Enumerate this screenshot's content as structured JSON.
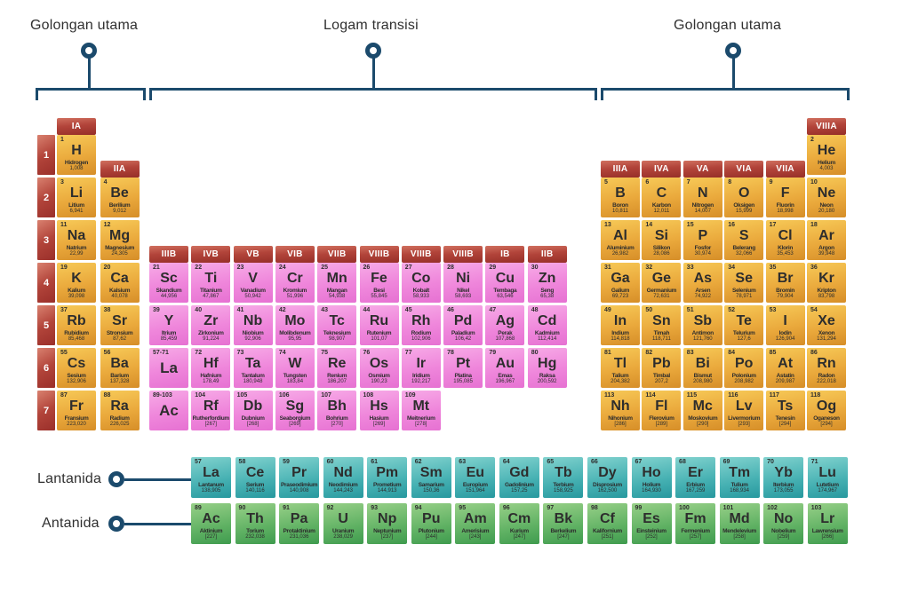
{
  "annotations": {
    "left_label": "Golongan utama",
    "middle_label": "Logam transisi",
    "right_label": "Golongan utama",
    "lanthanide_label": "Lantanida",
    "actinide_label": "Antanida"
  },
  "colors": {
    "main_group": "#eaa93c",
    "transition_metal": "#ef86db",
    "lanthanide": "#45b0b2",
    "actinide": "#5fb163",
    "header_red": "#b2443a",
    "annotation_blue": "#1b4a6c"
  },
  "periods": [
    "1",
    "2",
    "3",
    "4",
    "5",
    "6",
    "7"
  ],
  "group_headers": [
    {
      "label": "IA",
      "group": 1,
      "level": "high"
    },
    {
      "label": "IIA",
      "group": 2,
      "level": "low"
    },
    {
      "label": "IIIB",
      "group": 3,
      "level": "mid"
    },
    {
      "label": "IVB",
      "group": 4,
      "level": "mid"
    },
    {
      "label": "VB",
      "group": 5,
      "level": "mid"
    },
    {
      "label": "VIB",
      "group": 6,
      "level": "mid"
    },
    {
      "label": "VIIB",
      "group": 7,
      "level": "mid"
    },
    {
      "label": "VIIIB",
      "group": 8,
      "level": "mid"
    },
    {
      "label": "VIIIB",
      "group": 9,
      "level": "mid"
    },
    {
      "label": "VIIIB",
      "group": 10,
      "level": "mid"
    },
    {
      "label": "IB",
      "group": 11,
      "level": "mid"
    },
    {
      "label": "IIB",
      "group": 12,
      "level": "mid"
    },
    {
      "label": "IIIA",
      "group": 13,
      "level": "low"
    },
    {
      "label": "IVA",
      "group": 14,
      "level": "low"
    },
    {
      "label": "VA",
      "group": 15,
      "level": "low"
    },
    {
      "label": "VIA",
      "group": 16,
      "level": "low"
    },
    {
      "label": "VIIA",
      "group": 17,
      "level": "low"
    },
    {
      "label": "VIIIA",
      "group": 18,
      "level": "high"
    }
  ],
  "elements": [
    {
      "n": "1",
      "s": "H",
      "nm": "Hidrogen",
      "m": "1,008",
      "p": 1,
      "g": 1,
      "c": "mg"
    },
    {
      "n": "2",
      "s": "He",
      "nm": "Helium",
      "m": "4,003",
      "p": 1,
      "g": 18,
      "c": "mg"
    },
    {
      "n": "3",
      "s": "Li",
      "nm": "Litium",
      "m": "6,941",
      "p": 2,
      "g": 1,
      "c": "mg"
    },
    {
      "n": "4",
      "s": "Be",
      "nm": "Berilium",
      "m": "9,012",
      "p": 2,
      "g": 2,
      "c": "mg"
    },
    {
      "n": "5",
      "s": "B",
      "nm": "Boron",
      "m": "10,811",
      "p": 2,
      "g": 13,
      "c": "mg"
    },
    {
      "n": "6",
      "s": "C",
      "nm": "Karbon",
      "m": "12,011",
      "p": 2,
      "g": 14,
      "c": "mg"
    },
    {
      "n": "7",
      "s": "N",
      "nm": "Nitrogen",
      "m": "14,007",
      "p": 2,
      "g": 15,
      "c": "mg"
    },
    {
      "n": "8",
      "s": "O",
      "nm": "Oksigen",
      "m": "15,999",
      "p": 2,
      "g": 16,
      "c": "mg"
    },
    {
      "n": "9",
      "s": "F",
      "nm": "Fluorin",
      "m": "18,998",
      "p": 2,
      "g": 17,
      "c": "mg"
    },
    {
      "n": "10",
      "s": "Ne",
      "nm": "Neon",
      "m": "20,180",
      "p": 2,
      "g": 18,
      "c": "mg"
    },
    {
      "n": "11",
      "s": "Na",
      "nm": "Natrium",
      "m": "22,99",
      "p": 3,
      "g": 1,
      "c": "mg"
    },
    {
      "n": "12",
      "s": "Mg",
      "nm": "Magnesium",
      "m": "24,305",
      "p": 3,
      "g": 2,
      "c": "mg"
    },
    {
      "n": "13",
      "s": "Al",
      "nm": "Aluminium",
      "m": "26,982",
      "p": 3,
      "g": 13,
      "c": "mg"
    },
    {
      "n": "14",
      "s": "Si",
      "nm": "Silikon",
      "m": "28,086",
      "p": 3,
      "g": 14,
      "c": "mg"
    },
    {
      "n": "15",
      "s": "P",
      "nm": "Fosfor",
      "m": "30,974",
      "p": 3,
      "g": 15,
      "c": "mg"
    },
    {
      "n": "16",
      "s": "S",
      "nm": "Belerang",
      "m": "32,066",
      "p": 3,
      "g": 16,
      "c": "mg"
    },
    {
      "n": "17",
      "s": "Cl",
      "nm": "Klorin",
      "m": "35,453",
      "p": 3,
      "g": 17,
      "c": "mg"
    },
    {
      "n": "18",
      "s": "Ar",
      "nm": "Argon",
      "m": "39,948",
      "p": 3,
      "g": 18,
      "c": "mg"
    },
    {
      "n": "19",
      "s": "K",
      "nm": "Kalium",
      "m": "39,098",
      "p": 4,
      "g": 1,
      "c": "mg"
    },
    {
      "n": "20",
      "s": "Ca",
      "nm": "Kalsium",
      "m": "40,078",
      "p": 4,
      "g": 2,
      "c": "mg"
    },
    {
      "n": "21",
      "s": "Sc",
      "nm": "Skandium",
      "m": "44,956",
      "p": 4,
      "g": 3,
      "c": "tm"
    },
    {
      "n": "22",
      "s": "Ti",
      "nm": "Titanium",
      "m": "47,867",
      "p": 4,
      "g": 4,
      "c": "tm"
    },
    {
      "n": "23",
      "s": "V",
      "nm": "Vanadium",
      "m": "50,942",
      "p": 4,
      "g": 5,
      "c": "tm"
    },
    {
      "n": "24",
      "s": "Cr",
      "nm": "Kromium",
      "m": "51,996",
      "p": 4,
      "g": 6,
      "c": "tm"
    },
    {
      "n": "25",
      "s": "Mn",
      "nm": "Mangan",
      "m": "54,938",
      "p": 4,
      "g": 7,
      "c": "tm"
    },
    {
      "n": "26",
      "s": "Fe",
      "nm": "Besi",
      "m": "55,845",
      "p": 4,
      "g": 8,
      "c": "tm"
    },
    {
      "n": "27",
      "s": "Co",
      "nm": "Kobalt",
      "m": "58,933",
      "p": 4,
      "g": 9,
      "c": "tm"
    },
    {
      "n": "28",
      "s": "Ni",
      "nm": "Nikel",
      "m": "58,693",
      "p": 4,
      "g": 10,
      "c": "tm"
    },
    {
      "n": "29",
      "s": "Cu",
      "nm": "Tembaga",
      "m": "63,546",
      "p": 4,
      "g": 11,
      "c": "tm"
    },
    {
      "n": "30",
      "s": "Zn",
      "nm": "Seng",
      "m": "65,38",
      "p": 4,
      "g": 12,
      "c": "tm"
    },
    {
      "n": "31",
      "s": "Ga",
      "nm": "Galium",
      "m": "69,723",
      "p": 4,
      "g": 13,
      "c": "mg"
    },
    {
      "n": "32",
      "s": "Ge",
      "nm": "Germanium",
      "m": "72,631",
      "p": 4,
      "g": 14,
      "c": "mg"
    },
    {
      "n": "33",
      "s": "As",
      "nm": "Arsen",
      "m": "74,922",
      "p": 4,
      "g": 15,
      "c": "mg"
    },
    {
      "n": "34",
      "s": "Se",
      "nm": "Selenium",
      "m": "78,971",
      "p": 4,
      "g": 16,
      "c": "mg"
    },
    {
      "n": "35",
      "s": "Br",
      "nm": "Bromin",
      "m": "79,904",
      "p": 4,
      "g": 17,
      "c": "mg"
    },
    {
      "n": "36",
      "s": "Kr",
      "nm": "Kripton",
      "m": "83,798",
      "p": 4,
      "g": 18,
      "c": "mg"
    },
    {
      "n": "37",
      "s": "Rb",
      "nm": "Rubidium",
      "m": "85,468",
      "p": 5,
      "g": 1,
      "c": "mg"
    },
    {
      "n": "38",
      "s": "Sr",
      "nm": "Stronsium",
      "m": "87,62",
      "p": 5,
      "g": 2,
      "c": "mg"
    },
    {
      "n": "39",
      "s": "Y",
      "nm": "Itrium",
      "m": "85,459",
      "p": 5,
      "g": 3,
      "c": "tm"
    },
    {
      "n": "40",
      "s": "Zr",
      "nm": "Zirkonium",
      "m": "91,224",
      "p": 5,
      "g": 4,
      "c": "tm"
    },
    {
      "n": "41",
      "s": "Nb",
      "nm": "Niobium",
      "m": "92,906",
      "p": 5,
      "g": 5,
      "c": "tm"
    },
    {
      "n": "42",
      "s": "Mo",
      "nm": "Molibdenum",
      "m": "95,95",
      "p": 5,
      "g": 6,
      "c": "tm"
    },
    {
      "n": "43",
      "s": "Tc",
      "nm": "Teknesium",
      "m": "98,907",
      "p": 5,
      "g": 7,
      "c": "tm"
    },
    {
      "n": "44",
      "s": "Ru",
      "nm": "Rutenium",
      "m": "101,07",
      "p": 5,
      "g": 8,
      "c": "tm"
    },
    {
      "n": "45",
      "s": "Rh",
      "nm": "Rodium",
      "m": "102,906",
      "p": 5,
      "g": 9,
      "c": "tm"
    },
    {
      "n": "46",
      "s": "Pd",
      "nm": "Paladium",
      "m": "106,42",
      "p": 5,
      "g": 10,
      "c": "tm"
    },
    {
      "n": "47",
      "s": "Ag",
      "nm": "Perak",
      "m": "107,868",
      "p": 5,
      "g": 11,
      "c": "tm"
    },
    {
      "n": "48",
      "s": "Cd",
      "nm": "Kadmium",
      "m": "112,414",
      "p": 5,
      "g": 12,
      "c": "tm"
    },
    {
      "n": "49",
      "s": "In",
      "nm": "Indium",
      "m": "114,818",
      "p": 5,
      "g": 13,
      "c": "mg"
    },
    {
      "n": "50",
      "s": "Sn",
      "nm": "Timah",
      "m": "118,711",
      "p": 5,
      "g": 14,
      "c": "mg"
    },
    {
      "n": "51",
      "s": "Sb",
      "nm": "Antimon",
      "m": "121,760",
      "p": 5,
      "g": 15,
      "c": "mg"
    },
    {
      "n": "52",
      "s": "Te",
      "nm": "Telurium",
      "m": "127,6",
      "p": 5,
      "g": 16,
      "c": "mg"
    },
    {
      "n": "53",
      "s": "I",
      "nm": "Iodin",
      "m": "126,904",
      "p": 5,
      "g": 17,
      "c": "mg"
    },
    {
      "n": "54",
      "s": "Xe",
      "nm": "Xenon",
      "m": "131,294",
      "p": 5,
      "g": 18,
      "c": "mg"
    },
    {
      "n": "55",
      "s": "Cs",
      "nm": "Sesium",
      "m": "132,906",
      "p": 6,
      "g": 1,
      "c": "mg"
    },
    {
      "n": "56",
      "s": "Ba",
      "nm": "Barium",
      "m": "137,328",
      "p": 6,
      "g": 2,
      "c": "mg"
    },
    {
      "n": "57-71",
      "s": "La",
      "p": 6,
      "g": 3,
      "c": "tm",
      "ph": true
    },
    {
      "n": "72",
      "s": "Hf",
      "nm": "Hafnium",
      "m": "178,49",
      "p": 6,
      "g": 4,
      "c": "tm"
    },
    {
      "n": "73",
      "s": "Ta",
      "nm": "Tantalum",
      "m": "180,948",
      "p": 6,
      "g": 5,
      "c": "tm"
    },
    {
      "n": "74",
      "s": "W",
      "nm": "Tungsten",
      "m": "183,84",
      "p": 6,
      "g": 6,
      "c": "tm"
    },
    {
      "n": "75",
      "s": "Re",
      "nm": "Renium",
      "m": "186,207",
      "p": 6,
      "g": 7,
      "c": "tm"
    },
    {
      "n": "76",
      "s": "Os",
      "nm": "Osmium",
      "m": "190,23",
      "p": 6,
      "g": 8,
      "c": "tm"
    },
    {
      "n": "77",
      "s": "Ir",
      "nm": "Iridium",
      "m": "192,217",
      "p": 6,
      "g": 9,
      "c": "tm"
    },
    {
      "n": "78",
      "s": "Pt",
      "nm": "Platina",
      "m": "195,085",
      "p": 6,
      "g": 10,
      "c": "tm"
    },
    {
      "n": "79",
      "s": "Au",
      "nm": "Emas",
      "m": "196,967",
      "p": 6,
      "g": 11,
      "c": "tm"
    },
    {
      "n": "80",
      "s": "Hg",
      "nm": "Raksa",
      "m": "200,592",
      "p": 6,
      "g": 12,
      "c": "tm"
    },
    {
      "n": "81",
      "s": "Tl",
      "nm": "Talium",
      "m": "204,382",
      "p": 6,
      "g": 13,
      "c": "mg"
    },
    {
      "n": "82",
      "s": "Pb",
      "nm": "Timbal",
      "m": "207,2",
      "p": 6,
      "g": 14,
      "c": "mg"
    },
    {
      "n": "83",
      "s": "Bi",
      "nm": "Bismut",
      "m": "208,980",
      "p": 6,
      "g": 15,
      "c": "mg"
    },
    {
      "n": "84",
      "s": "Po",
      "nm": "Polonium",
      "m": "208,982",
      "p": 6,
      "g": 16,
      "c": "mg"
    },
    {
      "n": "85",
      "s": "At",
      "nm": "Astatin",
      "m": "209,987",
      "p": 6,
      "g": 17,
      "c": "mg"
    },
    {
      "n": "86",
      "s": "Rn",
      "nm": "Radon",
      "m": "222,018",
      "p": 6,
      "g": 18,
      "c": "mg"
    },
    {
      "n": "87",
      "s": "Fr",
      "nm": "Fransium",
      "m": "223,020",
      "p": 7,
      "g": 1,
      "c": "mg"
    },
    {
      "n": "88",
      "s": "Ra",
      "nm": "Radium",
      "m": "226,025",
      "p": 7,
      "g": 2,
      "c": "mg"
    },
    {
      "n": "89-103",
      "s": "Ac",
      "p": 7,
      "g": 3,
      "c": "tm",
      "ph": true
    },
    {
      "n": "104",
      "s": "Rf",
      "nm": "Rutherfordium",
      "m": "[267]",
      "p": 7,
      "g": 4,
      "c": "tm"
    },
    {
      "n": "105",
      "s": "Db",
      "nm": "Dubnium",
      "m": "[268]",
      "p": 7,
      "g": 5,
      "c": "tm"
    },
    {
      "n": "106",
      "s": "Sg",
      "nm": "Seaborgium",
      "m": "[269]",
      "p": 7,
      "g": 6,
      "c": "tm"
    },
    {
      "n": "107",
      "s": "Bh",
      "nm": "Bohrium",
      "m": "[270]",
      "p": 7,
      "g": 7,
      "c": "tm"
    },
    {
      "n": "108",
      "s": "Hs",
      "nm": "Hasium",
      "m": "[269]",
      "p": 7,
      "g": 8,
      "c": "tm"
    },
    {
      "n": "109",
      "s": "Mt",
      "nm": "Meitnerium",
      "m": "[278]",
      "p": 7,
      "g": 9,
      "c": "tm"
    },
    {
      "n": "113",
      "s": "Nh",
      "nm": "Nihonium",
      "m": "[286]",
      "p": 7,
      "g": 13,
      "c": "mg"
    },
    {
      "n": "114",
      "s": "Fl",
      "nm": "Flerovium",
      "m": "[289]",
      "p": 7,
      "g": 14,
      "c": "mg"
    },
    {
      "n": "115",
      "s": "Mc",
      "nm": "Moskovium",
      "m": "[290]",
      "p": 7,
      "g": 15,
      "c": "mg"
    },
    {
      "n": "116",
      "s": "Lv",
      "nm": "Livermorium",
      "m": "[293]",
      "p": 7,
      "g": 16,
      "c": "mg"
    },
    {
      "n": "117",
      "s": "Ts",
      "nm": "Tenesin",
      "m": "[294]",
      "p": 7,
      "g": 17,
      "c": "mg"
    },
    {
      "n": "118",
      "s": "Og",
      "nm": "Oganeson",
      "m": "[294]",
      "p": 7,
      "g": 18,
      "c": "mg"
    }
  ],
  "lanthanides": [
    {
      "n": "57",
      "s": "La",
      "nm": "Lantanum",
      "m": "138,905",
      "c": "ln"
    },
    {
      "n": "58",
      "s": "Ce",
      "nm": "Serium",
      "m": "140,116",
      "c": "ln"
    },
    {
      "n": "59",
      "s": "Pr",
      "nm": "Praseodimium",
      "m": "140,908",
      "c": "ln"
    },
    {
      "n": "60",
      "s": "Nd",
      "nm": "Neodimium",
      "m": "144,243",
      "c": "ln"
    },
    {
      "n": "61",
      "s": "Pm",
      "nm": "Prometium",
      "m": "144,913",
      "c": "ln"
    },
    {
      "n": "62",
      "s": "Sm",
      "nm": "Samarium",
      "m": "150,36",
      "c": "ln"
    },
    {
      "n": "63",
      "s": "Eu",
      "nm": "Europium",
      "m": "151,964",
      "c": "ln"
    },
    {
      "n": "64",
      "s": "Gd",
      "nm": "Gadolinium",
      "m": "157,25",
      "c": "ln"
    },
    {
      "n": "65",
      "s": "Tb",
      "nm": "Terbium",
      "m": "158,925",
      "c": "ln"
    },
    {
      "n": "66",
      "s": "Dy",
      "nm": "Disprosium",
      "m": "162,500",
      "c": "ln"
    },
    {
      "n": "67",
      "s": "Ho",
      "nm": "Holium",
      "m": "164,930",
      "c": "ln"
    },
    {
      "n": "68",
      "s": "Er",
      "nm": "Erbium",
      "m": "167,259",
      "c": "ln"
    },
    {
      "n": "69",
      "s": "Tm",
      "nm": "Tulium",
      "m": "168,934",
      "c": "ln"
    },
    {
      "n": "70",
      "s": "Yb",
      "nm": "Iterbium",
      "m": "173,055",
      "c": "ln"
    },
    {
      "n": "71",
      "s": "Lu",
      "nm": "Lutetium",
      "m": "174,967",
      "c": "ln"
    }
  ],
  "actinides": [
    {
      "n": "89",
      "s": "Ac",
      "nm": "Aktinium",
      "m": "[227]",
      "c": "an"
    },
    {
      "n": "90",
      "s": "Th",
      "nm": "Torium",
      "m": "232,038",
      "c": "an"
    },
    {
      "n": "91",
      "s": "Pa",
      "nm": "Protaktinium",
      "m": "231,036",
      "c": "an"
    },
    {
      "n": "92",
      "s": "U",
      "nm": "Uranium",
      "m": "238,029",
      "c": "an"
    },
    {
      "n": "93",
      "s": "Np",
      "nm": "Neptunium",
      "m": "[237]",
      "c": "an"
    },
    {
      "n": "94",
      "s": "Pu",
      "nm": "Plutonium",
      "m": "[244]",
      "c": "an"
    },
    {
      "n": "95",
      "s": "Am",
      "nm": "Amerisium",
      "m": "[243]",
      "c": "an"
    },
    {
      "n": "96",
      "s": "Cm",
      "nm": "Kurium",
      "m": "[247]",
      "c": "an"
    },
    {
      "n": "97",
      "s": "Bk",
      "nm": "Berkelium",
      "m": "[247]",
      "c": "an"
    },
    {
      "n": "98",
      "s": "Cf",
      "nm": "Kalifornium",
      "m": "[251]",
      "c": "an"
    },
    {
      "n": "99",
      "s": "Es",
      "nm": "Einsteinium",
      "m": "[252]",
      "c": "an"
    },
    {
      "n": "100",
      "s": "Fm",
      "nm": "Fermenium",
      "m": "[257]",
      "c": "an"
    },
    {
      "n": "101",
      "s": "Md",
      "nm": "Mendelevium",
      "m": "[258]",
      "c": "an"
    },
    {
      "n": "102",
      "s": "No",
      "nm": "Nobelium",
      "m": "[259]",
      "c": "an"
    },
    {
      "n": "103",
      "s": "Lr",
      "nm": "Lawrensium",
      "m": "[266]",
      "c": "an"
    }
  ]
}
